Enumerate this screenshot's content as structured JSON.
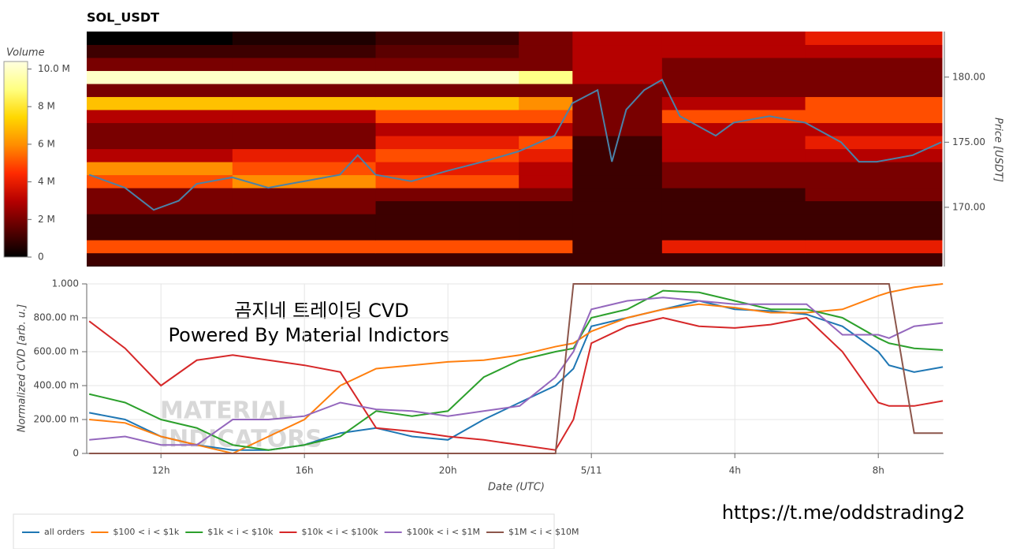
{
  "chart_data": [
    {
      "type": "heatmap",
      "title": "SOL_USDT",
      "ylabel": "Price [USDT]",
      "xlim": [
        9.93,
        33.82
      ],
      "ylim": [
        165.45,
        183.5
      ],
      "yticks": [
        {
          "value": 170,
          "label": "170.00"
        },
        {
          "value": 175,
          "label": "175.00"
        },
        {
          "value": 180,
          "label": "180.00"
        }
      ],
      "x_bins": [
        9.93,
        14,
        18,
        22,
        23.5,
        26,
        30,
        33.82
      ],
      "y_bins": [
        165.5,
        166.5,
        167.5,
        168.5,
        169.5,
        170.5,
        171.5,
        172.5,
        173.5,
        174.5,
        175.5,
        176.5,
        177.5,
        178.5,
        179.5,
        180.5,
        181.5,
        182.5,
        183.5
      ],
      "z": [
        [
          1,
          1,
          1,
          1,
          1,
          1,
          1
        ],
        [
          5,
          5,
          5,
          5,
          1,
          4,
          4
        ],
        [
          1,
          1,
          1,
          1,
          1,
          1,
          1
        ],
        [
          1,
          1,
          1,
          1,
          1,
          1,
          1
        ],
        [
          2,
          2,
          1,
          1,
          1,
          1,
          1
        ],
        [
          2,
          2,
          2,
          2,
          1,
          1,
          2
        ],
        [
          5,
          6,
          5,
          3,
          1,
          2,
          2
        ],
        [
          6,
          5,
          4,
          3,
          1,
          2,
          2
        ],
        [
          3,
          4,
          5,
          4,
          1,
          3,
          3
        ],
        [
          2,
          2,
          4,
          5,
          1,
          3,
          4
        ],
        [
          2,
          2,
          3,
          3,
          2,
          3,
          3
        ],
        [
          3,
          3,
          5,
          5,
          2,
          5,
          5
        ],
        [
          7,
          7,
          7,
          6,
          2,
          3,
          5
        ],
        [
          2,
          2,
          2,
          2,
          2,
          2,
          2
        ],
        [
          10,
          10,
          10,
          9,
          3,
          2,
          2
        ],
        [
          2,
          2,
          2,
          2,
          3,
          2,
          2
        ],
        [
          1,
          1,
          1.5,
          2,
          3,
          3,
          3
        ],
        [
          0,
          0.5,
          1,
          2,
          3,
          3,
          4
        ]
      ],
      "colorbar": {
        "label": "Volume",
        "lim": [
          0,
          10.4
        ],
        "ticks": [
          0,
          {
            "value": 2,
            "label": "2 M"
          },
          {
            "value": 4,
            "label": "4 M"
          },
          {
            "value": 6,
            "label": "6 M"
          },
          {
            "value": 8,
            "label": "8 M"
          },
          {
            "value": 10,
            "label": "10.0 M"
          }
        ],
        "colors": [
          "#000000",
          "#5a0000",
          "#b40000",
          "#ff2a00",
          "#ff8c00",
          "#ffd700",
          "#ffff80",
          "#ffffe0"
        ]
      },
      "line": {
        "color": "#4a82a8",
        "x": [
          10,
          11,
          11.8,
          12.5,
          13,
          14,
          15,
          16,
          17,
          17.5,
          18,
          19,
          20,
          21,
          22,
          23,
          23.5,
          24.2,
          24.6,
          25,
          25.5,
          26,
          26.5,
          27.5,
          28,
          29,
          30,
          31,
          31.5,
          32,
          33,
          33.8
        ],
        "values": [
          172.5,
          171.5,
          169.8,
          170.5,
          171.8,
          172.3,
          171.5,
          172,
          172.5,
          174,
          172.5,
          172,
          172.8,
          173.5,
          174.3,
          175.5,
          178,
          179,
          173.5,
          177.5,
          179,
          179.8,
          177,
          175.5,
          176.5,
          177,
          176.5,
          175,
          173.5,
          173.5,
          174,
          175
        ]
      }
    },
    {
      "type": "line",
      "xlabel": "Date (UTC)",
      "ylabel": "Normalized CVD [arb. u.]",
      "grid": true,
      "legend": "below",
      "annotations": [
        "곰지네 트레이딩 CVD",
        "Powered By Material Indictors"
      ],
      "watermark": [
        "MATERIAL",
        "INDICATORS"
      ],
      "xlim": [
        9.93,
        33.82
      ],
      "ylim": [
        0,
        1
      ],
      "xticks": [
        {
          "value": 12,
          "label": "12h"
        },
        {
          "value": 16,
          "label": "16h"
        },
        {
          "value": 20,
          "label": "20h"
        },
        {
          "value": 24,
          "label": "5/11"
        },
        {
          "value": 28,
          "label": "4h"
        },
        {
          "value": 32,
          "label": "8h"
        }
      ],
      "yticks": [
        0,
        {
          "value": 0.2,
          "label": "200.00 m"
        },
        {
          "value": 0.4,
          "label": "400.00 m"
        },
        {
          "value": 0.6,
          "label": "600.00 m"
        },
        {
          "value": 0.8,
          "label": "800.00 m"
        },
        {
          "value": 1,
          "label": "1.000"
        }
      ],
      "x": [
        10,
        11,
        12,
        13,
        14,
        15,
        16,
        17,
        18,
        19,
        20,
        21,
        22,
        23,
        23.5,
        24,
        25,
        26,
        27,
        28,
        29,
        30,
        31,
        32,
        32.3,
        33,
        33.8
      ],
      "series": [
        {
          "name": "all orders",
          "color": "#1f77b4",
          "values": [
            0.24,
            0.2,
            0.1,
            0.05,
            0.02,
            0.02,
            0.05,
            0.12,
            0.15,
            0.1,
            0.08,
            0.2,
            0.3,
            0.4,
            0.5,
            0.75,
            0.8,
            0.85,
            0.9,
            0.85,
            0.84,
            0.82,
            0.75,
            0.6,
            0.52,
            0.48,
            0.51
          ]
        },
        {
          "name": "$100 < i < $1k",
          "color": "#ff7f0e",
          "values": [
            0.2,
            0.18,
            0.1,
            0.05,
            0,
            0.1,
            0.2,
            0.4,
            0.5,
            0.52,
            0.54,
            0.55,
            0.58,
            0.63,
            0.65,
            0.72,
            0.8,
            0.85,
            0.88,
            0.86,
            0.83,
            0.83,
            0.85,
            0.93,
            0.95,
            0.98,
            1
          ]
        },
        {
          "name": "$1k < i < $10k",
          "color": "#2ca02c",
          "values": [
            0.35,
            0.3,
            0.2,
            0.15,
            0.05,
            0.02,
            0.05,
            0.1,
            0.25,
            0.22,
            0.25,
            0.45,
            0.55,
            0.6,
            0.62,
            0.8,
            0.85,
            0.96,
            0.95,
            0.9,
            0.85,
            0.85,
            0.8,
            0.68,
            0.65,
            0.62,
            0.61
          ]
        },
        {
          "name": "$10k < i < $100k",
          "color": "#d62728",
          "values": [
            0.78,
            0.62,
            0.4,
            0.55,
            0.58,
            0.55,
            0.52,
            0.48,
            0.15,
            0.13,
            0.1,
            0.08,
            0.05,
            0.02,
            0.2,
            0.65,
            0.75,
            0.8,
            0.75,
            0.74,
            0.76,
            0.8,
            0.6,
            0.3,
            0.28,
            0.28,
            0.31
          ]
        },
        {
          "name": "$100k < i < $1M",
          "color": "#9467bd",
          "values": [
            0.08,
            0.1,
            0.05,
            0.05,
            0.2,
            0.2,
            0.22,
            0.3,
            0.26,
            0.25,
            0.22,
            0.25,
            0.28,
            0.45,
            0.6,
            0.85,
            0.9,
            0.92,
            0.9,
            0.88,
            0.88,
            0.88,
            0.7,
            0.7,
            0.68,
            0.75,
            0.77
          ]
        },
        {
          "name": "$1M < i < $10M",
          "color": "#8c564b",
          "values": [
            0,
            0,
            0,
            0,
            0,
            0,
            0,
            0,
            0,
            0,
            0,
            0,
            0,
            0,
            1,
            1,
            1,
            1,
            1,
            1,
            1,
            1,
            1,
            1,
            1,
            0.12,
            0.12
          ]
        }
      ]
    }
  ],
  "link": "https://t.me/oddstrading2"
}
